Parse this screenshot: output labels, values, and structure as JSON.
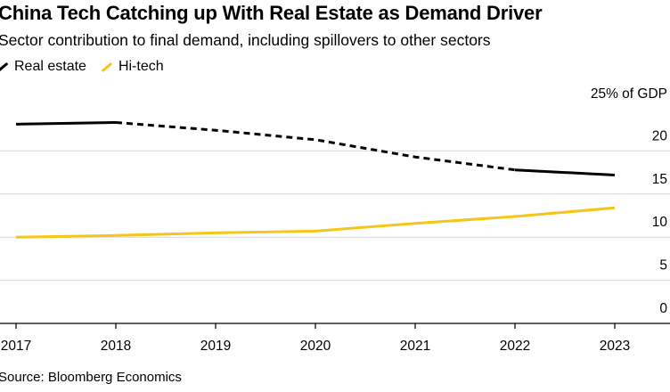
{
  "chart_data": {
    "type": "line",
    "title": "China Tech Catching up With Real Estate as Demand Driver",
    "subtitle": "Sector contribution to final demand, including spillovers to other sectors",
    "unit_label": "25% of GDP",
    "source": "Source: Bloomberg Economics",
    "x": [
      "2017",
      "2018",
      "2019",
      "2020",
      "2021",
      "2022",
      "2023"
    ],
    "ylim": [
      0,
      25
    ],
    "yticks": [
      "20",
      "15",
      "10",
      "5",
      "0"
    ],
    "ytick_values": [
      20,
      15,
      10,
      5,
      0
    ],
    "grid": true,
    "legend_position": "top-left",
    "series": [
      {
        "name": "Real estate",
        "color": "#000000",
        "values": [
          23.1,
          23.3,
          22.4,
          21.3,
          19.3,
          17.8,
          17.2
        ],
        "dashed_x_range": [
          "2018",
          "2022"
        ]
      },
      {
        "name": "Hi-tech",
        "color": "#f5c518",
        "values": [
          10.0,
          10.2,
          10.5,
          10.7,
          11.6,
          12.4,
          13.4
        ]
      }
    ]
  }
}
